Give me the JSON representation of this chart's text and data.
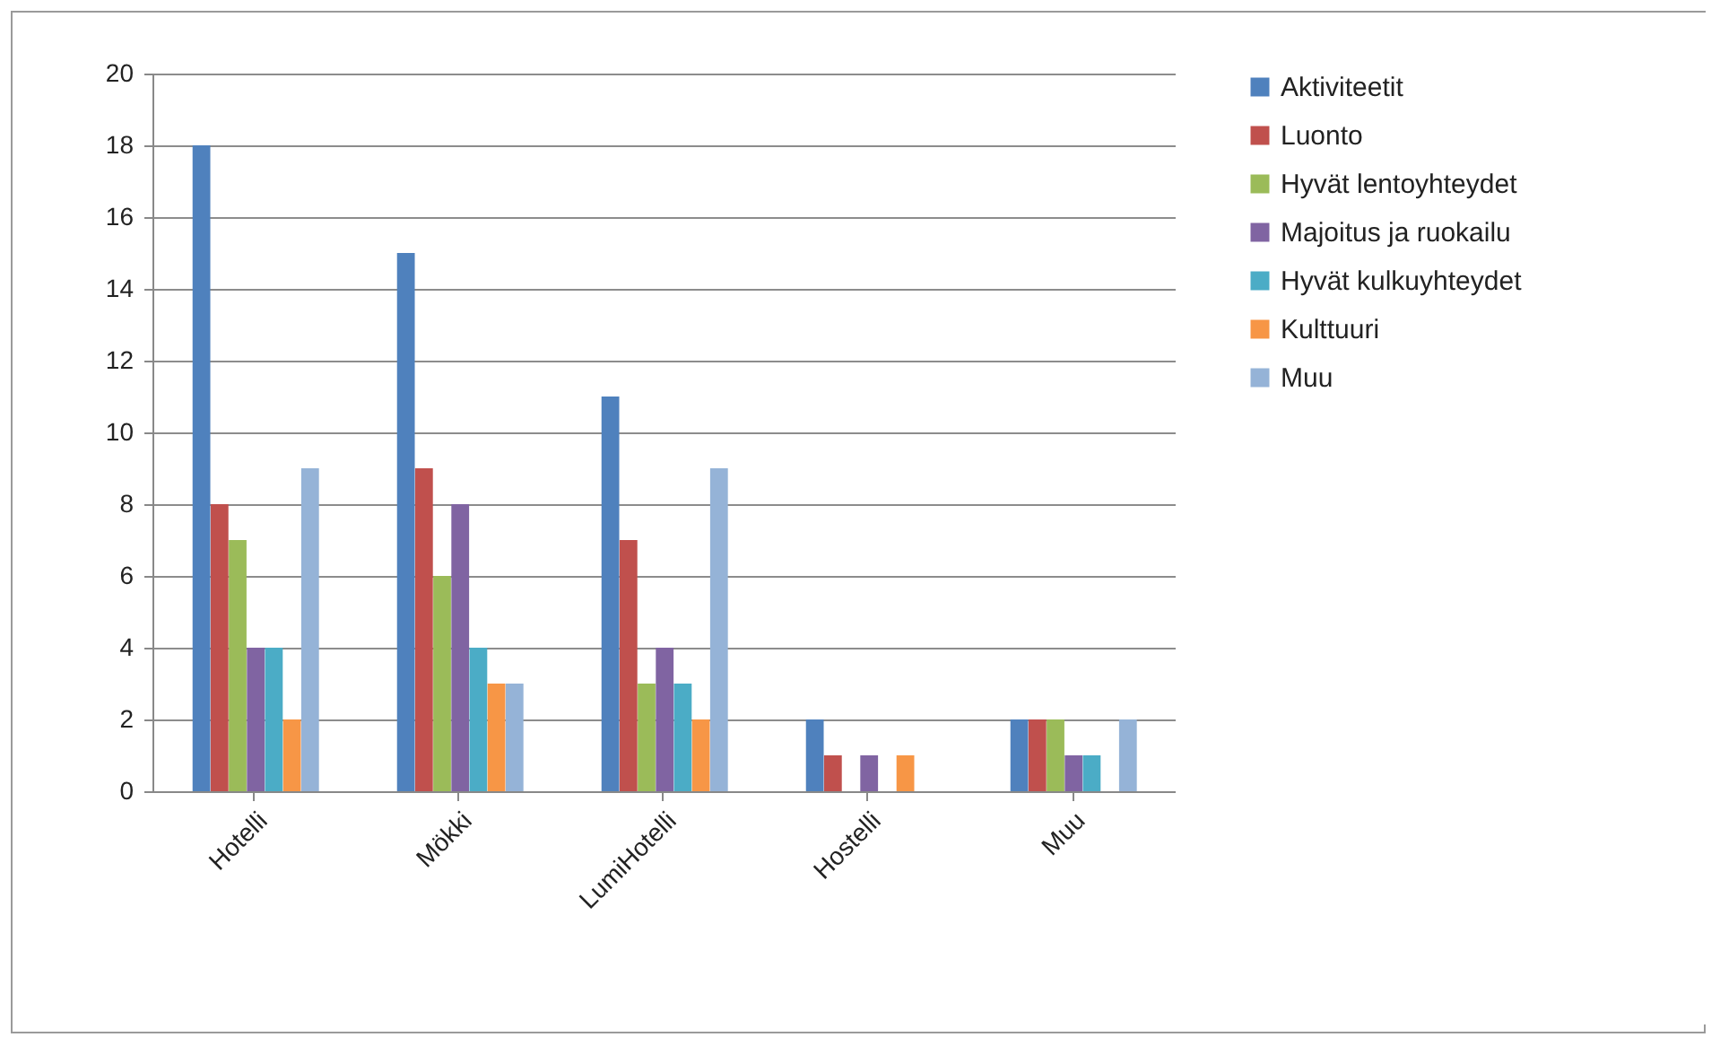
{
  "chart_data": {
    "type": "bar",
    "categories": [
      "Hotelli",
      "Mökki",
      "LumiHotelli",
      "Hostelli",
      "Muu"
    ],
    "series": [
      {
        "name": "Aktiviteetit",
        "color": "#4f81bd",
        "values": [
          18,
          15,
          11,
          2,
          2
        ]
      },
      {
        "name": "Luonto",
        "color": "#c0504d",
        "values": [
          8,
          9,
          7,
          1,
          2
        ]
      },
      {
        "name": "Hyvät lentoyhteydet",
        "color": "#9bbb59",
        "values": [
          7,
          6,
          3,
          0,
          2
        ]
      },
      {
        "name": "Majoitus ja ruokailu",
        "color": "#8064a2",
        "values": [
          4,
          8,
          4,
          1,
          1
        ]
      },
      {
        "name": "Hyvät kulkuyhteydet",
        "color": "#4bacc6",
        "values": [
          4,
          4,
          3,
          0,
          1
        ]
      },
      {
        "name": "Kulttuuri",
        "color": "#f79646",
        "values": [
          2,
          3,
          2,
          1,
          0
        ]
      },
      {
        "name": "Muu",
        "color": "#95b3d7",
        "values": [
          9,
          3,
          9,
          0,
          2
        ]
      }
    ],
    "ylim": [
      0,
      20
    ],
    "yticks": [
      0,
      2,
      4,
      6,
      8,
      10,
      12,
      14,
      16,
      18,
      20
    ],
    "grid": "y",
    "legend": "right"
  }
}
